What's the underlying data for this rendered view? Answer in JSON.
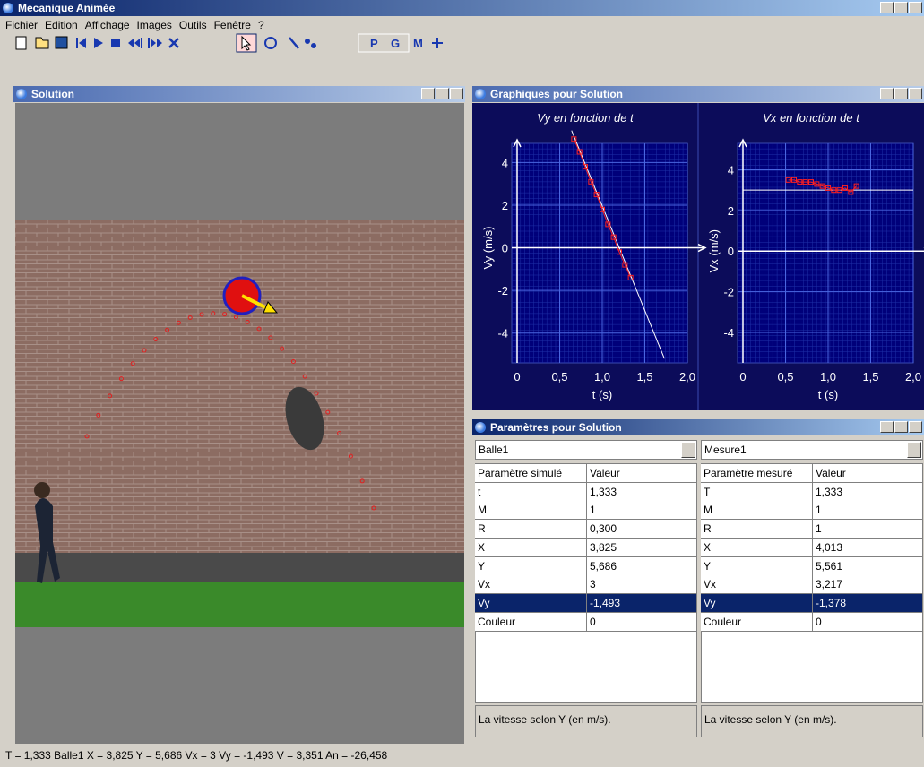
{
  "window": {
    "title": "Mecanique Animée",
    "menu": [
      "Fichier",
      "Edition",
      "Affichage",
      "Images",
      "Outils",
      "Fenêtre",
      "?"
    ],
    "toolbar_labels": [
      "P",
      "G",
      "M"
    ]
  },
  "solution": {
    "title": "Solution"
  },
  "graphs": {
    "title": "Graphiques pour Solution",
    "charts": [
      {
        "type": "scatter",
        "title": "Vy en fonction de t",
        "ylabel": "Vy (m/s)",
        "xlabel": "t (s)",
        "xlim": [
          0,
          2
        ],
        "ylim": [
          -5.4,
          4.9
        ],
        "xticks": [
          0,
          {
            "value": 0.5,
            "label": "0,5"
          },
          {
            "value": 1,
            "label": "1,0"
          },
          {
            "value": 1.5,
            "label": "1,5"
          },
          {
            "value": 2,
            "label": "2,0"
          }
        ],
        "yticks": [
          -4,
          -2,
          0,
          2,
          4
        ],
        "grid": true,
        "points": {
          "color": "#ff2020",
          "x": [
            0.667,
            0.733,
            0.8,
            0.867,
            0.933,
            1.0,
            1.067,
            1.133,
            1.2,
            1.267,
            1.333
          ],
          "values": [
            5.1,
            4.5,
            3.8,
            3.1,
            2.5,
            1.8,
            1.1,
            0.5,
            -0.2,
            -0.8,
            -1.4
          ]
        },
        "fit": {
          "color": "#ffffff",
          "x": [
            0.64,
            1.73
          ],
          "values": [
            5.5,
            -5.2
          ]
        }
      },
      {
        "type": "scatter",
        "title": "Vx en fonction de t",
        "ylabel": "Vx (m/s)",
        "xlabel": "t (s)",
        "xlim": [
          0,
          2
        ],
        "ylim": [
          -5.5,
          5.3
        ],
        "xticks": [
          0,
          {
            "value": 0.5,
            "label": "0,5"
          },
          {
            "value": 1,
            "label": "1,0"
          },
          {
            "value": 1.5,
            "label": "1,5"
          },
          {
            "value": 2,
            "label": "2,0"
          }
        ],
        "yticks": [
          -4,
          -2,
          0,
          2,
          4
        ],
        "grid": true,
        "points": {
          "color": "#ff2020",
          "x": [
            0.533,
            0.6,
            0.667,
            0.733,
            0.8,
            0.867,
            0.933,
            1.0,
            1.067,
            1.133,
            1.2,
            1.267,
            1.333
          ],
          "values": [
            3.5,
            3.5,
            3.4,
            3.4,
            3.4,
            3.3,
            3.2,
            3.1,
            3.0,
            3.0,
            3.1,
            2.9,
            3.2
          ]
        },
        "fit": {
          "color": "#ffffff",
          "x": [
            0,
            2
          ],
          "values": [
            3,
            3
          ]
        }
      }
    ]
  },
  "params": {
    "title": "Paramètres pour Solution",
    "tables": [
      {
        "selector": "Balle1",
        "headers": [
          "Paramètre simulé",
          "Valeur"
        ],
        "rows": [
          [
            "t",
            "1,333"
          ],
          [
            "M",
            "1"
          ],
          [
            "R",
            "0,300"
          ],
          [
            "X",
            "3,825"
          ],
          [
            "Y",
            "5,686"
          ],
          [
            "Vx",
            "3"
          ],
          [
            "Vy",
            "-1,493"
          ],
          [
            "Couleur",
            "0"
          ]
        ],
        "selected_row": 6,
        "description": "La vitesse selon Y (en m/s)."
      },
      {
        "selector": "Mesure1",
        "headers": [
          "Paramètre mesuré",
          "Valeur"
        ],
        "rows": [
          [
            "T",
            "1,333"
          ],
          [
            "M",
            "1"
          ],
          [
            "R",
            "1"
          ],
          [
            "X",
            "4,013"
          ],
          [
            "Y",
            "5,561"
          ],
          [
            "Vx",
            "3,217"
          ],
          [
            "Vy",
            "-1,378"
          ],
          [
            "Couleur",
            "0"
          ]
        ],
        "selected_row": 6,
        "description": "La vitesse selon Y (en m/s)."
      }
    ]
  },
  "status": "T = 1,333   Balle1   X = 3,825   Y = 5,686   Vx = 3   Vy = -1,493   V = 3,351   An = -26,458"
}
